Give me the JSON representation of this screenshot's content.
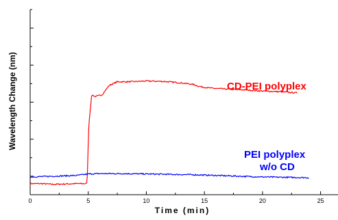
{
  "chart_data": {
    "type": "line",
    "title": "",
    "xlabel": "Time (min)",
    "ylabel": "Wavelength Change (nm)",
    "xlim": [
      0,
      26.5
    ],
    "ylim": [
      -0.5,
      4.5
    ],
    "xticks": [
      0,
      5,
      10,
      15,
      20,
      25
    ],
    "xtick_labels": [
      "0",
      "5",
      "10",
      "15",
      "20",
      "25"
    ],
    "yticks": [
      0,
      1,
      2,
      3,
      4
    ],
    "ytick_labels": [],
    "grid": false,
    "legend": "none",
    "annotations": [
      {
        "text": "CD-PEI polyplex",
        "color": "#ff0000",
        "lines": [
          "CD-PEI polyplex"
        ]
      },
      {
        "text": "PEI polyplex w/o CD",
        "color": "#0000ff",
        "lines": [
          "PEI polyplex",
          "w/o CD"
        ]
      }
    ],
    "series": [
      {
        "color": "#ff0000",
        "x": [
          0,
          1,
          2,
          3,
          4,
          4.9,
          5.05,
          5.3,
          5.6,
          6.2,
          6.8,
          7.5,
          8.5,
          10,
          11.5,
          13,
          14,
          14.6,
          15.5,
          17,
          18.5,
          20,
          21.5,
          23
        ],
        "y": [
          -0.2,
          -0.2,
          -0.22,
          -0.21,
          -0.2,
          -0.2,
          1.4,
          2.2,
          2.15,
          2.2,
          2.45,
          2.55,
          2.55,
          2.57,
          2.56,
          2.52,
          2.48,
          2.42,
          2.38,
          2.35,
          2.33,
          2.3,
          2.28,
          2.25
        ]
      },
      {
        "color": "#0000ff",
        "x": [
          0,
          2,
          4,
          5,
          6,
          8,
          10,
          12,
          14,
          16,
          18,
          20,
          22,
          24
        ],
        "y": [
          -0.02,
          0.0,
          0.02,
          0.06,
          0.07,
          0.07,
          0.06,
          0.05,
          0.04,
          0.02,
          0.0,
          -0.02,
          -0.03,
          -0.04
        ]
      }
    ]
  }
}
